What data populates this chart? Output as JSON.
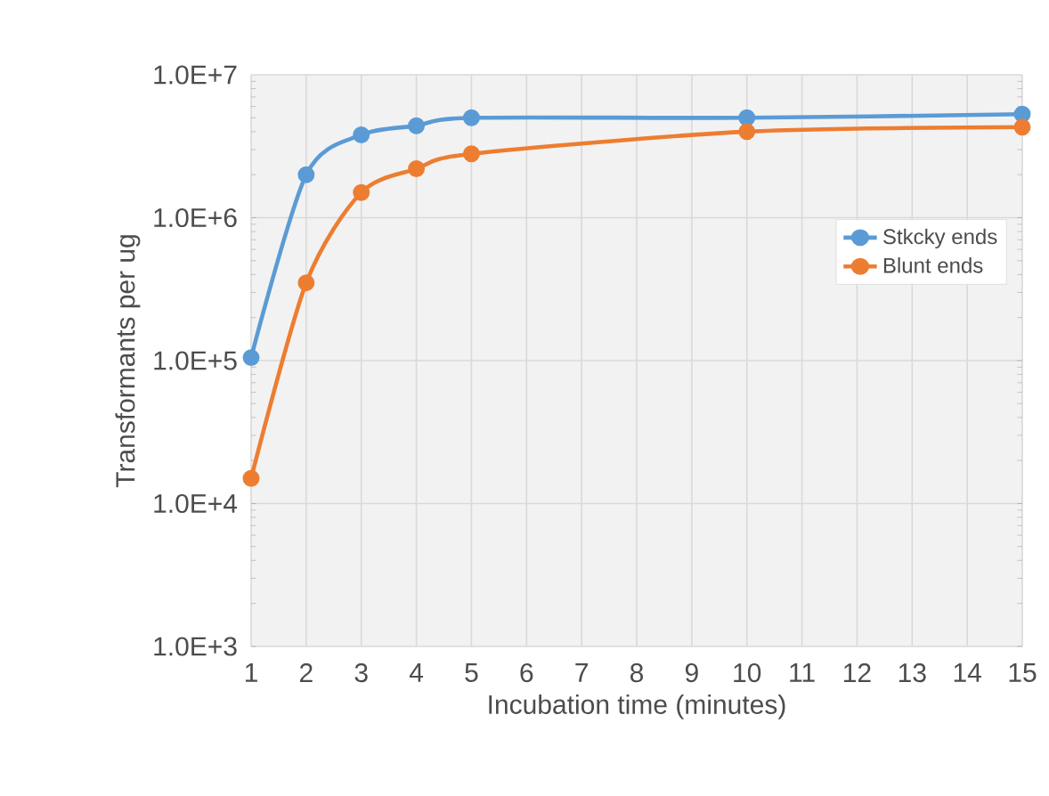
{
  "chart_data": {
    "type": "line",
    "xlabel": "Incubation time (minutes)",
    "ylabel": "Transformants per ug",
    "log": "y",
    "grid": true,
    "legend": "right",
    "marker": "circle",
    "line_style": "solid",
    "xlim": [
      1,
      15
    ],
    "xticks": [
      1,
      2,
      3,
      4,
      5,
      6,
      7,
      8,
      9,
      10,
      11,
      12,
      13,
      14,
      15
    ],
    "ylim": [
      1000,
      10000000
    ],
    "yticks": [
      {
        "value": 1000,
        "label": "1.0E+3"
      },
      {
        "value": 10000,
        "label": "1.0E+4"
      },
      {
        "value": 100000,
        "label": "1.0E+5"
      },
      {
        "value": 1000000,
        "label": "1.0E+6"
      },
      {
        "value": 10000000,
        "label": "1.0E+7"
      }
    ],
    "x": [
      1,
      2,
      3,
      4,
      5,
      10,
      15
    ],
    "series": [
      {
        "name": "Stkcky ends",
        "color": "#5b9bd5",
        "values": [
          105000,
          2000000,
          3800000,
          4400000,
          5000000,
          5000000,
          5300000
        ]
      },
      {
        "name": "Blunt ends",
        "color": "#ed7d31",
        "values": [
          15000,
          350000,
          1500000,
          2200000,
          2800000,
          4000000,
          4300000
        ]
      }
    ]
  }
}
